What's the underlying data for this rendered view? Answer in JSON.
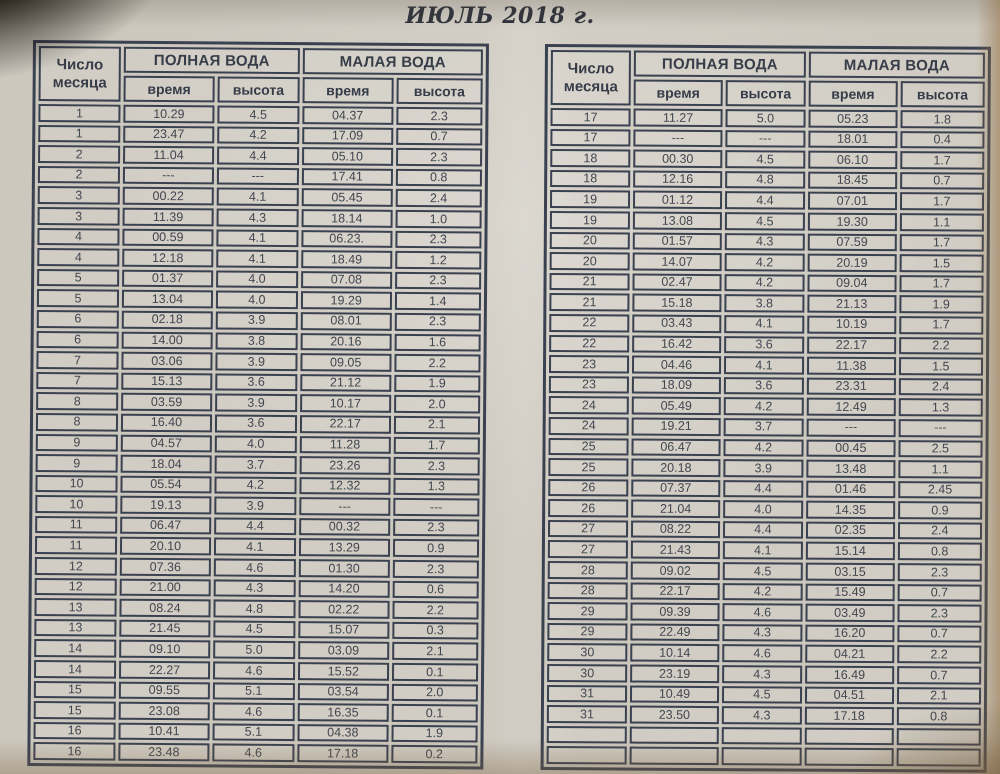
{
  "title": "ИЮЛЬ 2018 г.",
  "columns": {
    "day": "Число месяца",
    "full_water": "ПОЛНАЯ ВОДА",
    "low_water": "МАЛАЯ ВОДА",
    "time": "время",
    "height": "высота"
  },
  "tables": [
    {
      "name": "days-1-16",
      "rows": [
        [
          "1",
          "10.29",
          "4.5",
          "04.37",
          "2.3"
        ],
        [
          "1",
          "23.47",
          "4.2",
          "17.09",
          "0.7"
        ],
        [
          "2",
          "11.04",
          "4.4",
          "05.10",
          "2.3"
        ],
        [
          "2",
          "---",
          "---",
          "17.41",
          "0.8"
        ],
        [
          "3",
          "00.22",
          "4.1",
          "05.45",
          "2.4"
        ],
        [
          "3",
          "11.39",
          "4.3",
          "18.14",
          "1.0"
        ],
        [
          "4",
          "00.59",
          "4.1",
          "06.23.",
          "2.3"
        ],
        [
          "4",
          "12.18",
          "4.1",
          "18.49",
          "1.2"
        ],
        [
          "5",
          "01.37",
          "4.0",
          "07.08",
          "2.3"
        ],
        [
          "5",
          "13.04",
          "4.0",
          "19.29",
          "1.4"
        ],
        [
          "6",
          "02.18",
          "3.9",
          "08.01",
          "2.3"
        ],
        [
          "6",
          "14.00",
          "3.8",
          "20.16",
          "1.6"
        ],
        [
          "7",
          "03.06",
          "3.9",
          "09.05",
          "2.2"
        ],
        [
          "7",
          "15.13",
          "3.6",
          "21.12",
          "1.9"
        ],
        [
          "8",
          "03.59",
          "3.9",
          "10.17",
          "2.0"
        ],
        [
          "8",
          "16.40",
          "3.6",
          "22.17",
          "2.1"
        ],
        [
          "9",
          "04.57",
          "4.0",
          "11.28",
          "1.7"
        ],
        [
          "9",
          "18.04",
          "3.7",
          "23.26",
          "2.3"
        ],
        [
          "10",
          "05.54",
          "4.2",
          "12.32",
          "1.3"
        ],
        [
          "10",
          "19.13",
          "3.9",
          "---",
          "---"
        ],
        [
          "11",
          "06.47",
          "4.4",
          "00.32",
          "2.3"
        ],
        [
          "11",
          "20.10",
          "4.1",
          "13.29",
          "0.9"
        ],
        [
          "12",
          "07.36",
          "4.6",
          "01.30",
          "2.3"
        ],
        [
          "12",
          "21.00",
          "4.3",
          "14.20",
          "0.6"
        ],
        [
          "13",
          "08.24",
          "4.8",
          "02.22",
          "2.2"
        ],
        [
          "13",
          "21.45",
          "4.5",
          "15.07",
          "0.3"
        ],
        [
          "14",
          "09.10",
          "5.0",
          "03.09",
          "2.1"
        ],
        [
          "14",
          "22.27",
          "4.6",
          "15.52",
          "0.1"
        ],
        [
          "15",
          "09.55",
          "5.1",
          "03.54",
          "2.0"
        ],
        [
          "15",
          "23.08",
          "4.6",
          "16.35",
          "0.1"
        ],
        [
          "16",
          "10.41",
          "5.1",
          "04.38",
          "1.9"
        ],
        [
          "16",
          "23.48",
          "4.6",
          "17.18",
          "0.2"
        ]
      ]
    },
    {
      "name": "days-17-31",
      "rows": [
        [
          "17",
          "11.27",
          "5.0",
          "05.23",
          "1.8"
        ],
        [
          "17",
          "---",
          "---",
          "18.01",
          "0.4"
        ],
        [
          "18",
          "00.30",
          "4.5",
          "06.10",
          "1.7"
        ],
        [
          "18",
          "12.16",
          "4.8",
          "18.45",
          "0.7"
        ],
        [
          "19",
          "01.12",
          "4.4",
          "07.01",
          "1.7"
        ],
        [
          "19",
          "13.08",
          "4.5",
          "19.30",
          "1.1"
        ],
        [
          "20",
          "01.57",
          "4.3",
          "07.59",
          "1.7"
        ],
        [
          "20",
          "14.07",
          "4.2",
          "20.19",
          "1.5"
        ],
        [
          "21",
          "02.47",
          "4.2",
          "09.04",
          "1.7"
        ],
        [
          "21",
          "15.18",
          "3.8",
          "21.13",
          "1.9"
        ],
        [
          "22",
          "03.43",
          "4.1",
          "10.19",
          "1.7"
        ],
        [
          "22",
          "16.42",
          "3.6",
          "22.17",
          "2.2"
        ],
        [
          "23",
          "04.46",
          "4.1",
          "11.38",
          "1.5"
        ],
        [
          "23",
          "18.09",
          "3.6",
          "23.31",
          "2.4"
        ],
        [
          "24",
          "05.49",
          "4.2",
          "12.49",
          "1.3"
        ],
        [
          "24",
          "19.21",
          "3.7",
          "---",
          "---"
        ],
        [
          "25",
          "06.47",
          "4.2",
          "00.45",
          "2.5"
        ],
        [
          "25",
          "20.18",
          "3.9",
          "13.48",
          "1.1"
        ],
        [
          "26",
          "07.37",
          "4.4",
          "01.46",
          "2.45"
        ],
        [
          "26",
          "21.04",
          "4.0",
          "14.35",
          "0.9"
        ],
        [
          "27",
          "08.22",
          "4.4",
          "02.35",
          "2.4"
        ],
        [
          "27",
          "21.43",
          "4.1",
          "15.14",
          "0.8"
        ],
        [
          "28",
          "09.02",
          "4.5",
          "03.15",
          "2.3"
        ],
        [
          "28",
          "22.17",
          "4.2",
          "15.49",
          "0.7"
        ],
        [
          "29",
          "09.39",
          "4.6",
          "03.49",
          "2.3"
        ],
        [
          "29",
          "22.49",
          "4.3",
          "16.20",
          "0.7"
        ],
        [
          "30",
          "10.14",
          "4.6",
          "04.21",
          "2.2"
        ],
        [
          "30",
          "23.19",
          "4.3",
          "16.49",
          "0.7"
        ],
        [
          "31",
          "10.49",
          "4.5",
          "04.51",
          "2.1"
        ],
        [
          "31",
          "23.50",
          "4.3",
          "17.18",
          "0.8"
        ],
        [
          "",
          "",
          "",
          "",
          ""
        ],
        [
          "",
          "",
          "",
          "",
          ""
        ]
      ]
    }
  ],
  "colors": {
    "paper": "#cdc8be",
    "grid": "#3a4150",
    "text": "#42464f",
    "header_text": "#363c48"
  }
}
